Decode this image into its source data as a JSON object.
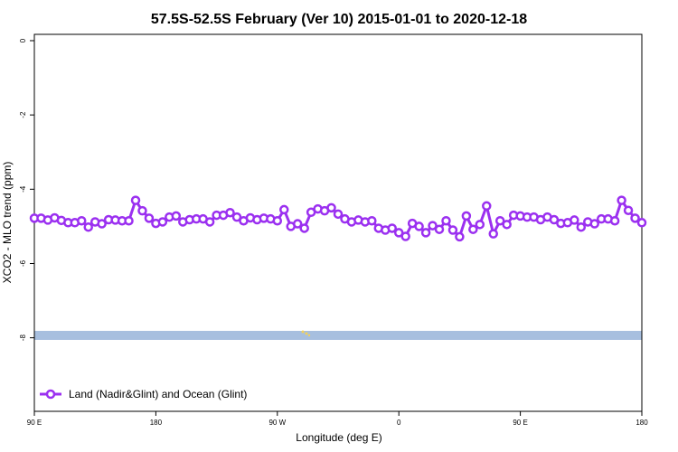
{
  "chart_data": {
    "type": "line",
    "title": "57.5S-52.5S February (Ver 10)   2015-01-01 to 2020-12-18",
    "xlabel": "Longitude (deg E)",
    "ylabel": "XCO2 - MLO trend (ppm)",
    "x": [
      90,
      95,
      100,
      105,
      110,
      115,
      120,
      125,
      130,
      135,
      140,
      145,
      150,
      155,
      160,
      165,
      170,
      175,
      180,
      185,
      190,
      195,
      200,
      205,
      210,
      215,
      220,
      225,
      230,
      235,
      240,
      245,
      250,
      255,
      260,
      265,
      270,
      275,
      280,
      285,
      290,
      295,
      300,
      305,
      310,
      315,
      320,
      325,
      330,
      335,
      340,
      345,
      350,
      355,
      360,
      365,
      370,
      375,
      380,
      385,
      390,
      395,
      400,
      405,
      410,
      415,
      420,
      425,
      430,
      435,
      440,
      445,
      450,
      455,
      460,
      465,
      470,
      475,
      480,
      485,
      490,
      495,
      500,
      505,
      510,
      515,
      520,
      525,
      530,
      535,
      540
    ],
    "series": [
      {
        "name": "Land (Nadir&Glint) and Ocean (Glint)",
        "color": "#9b30f0",
        "values": [
          -4.78,
          -4.78,
          -4.83,
          -4.77,
          -4.84,
          -4.9,
          -4.9,
          -4.85,
          -5.02,
          -4.88,
          -4.93,
          -4.82,
          -4.83,
          -4.85,
          -4.85,
          -4.3,
          -4.58,
          -4.78,
          -4.92,
          -4.88,
          -4.75,
          -4.72,
          -4.88,
          -4.82,
          -4.8,
          -4.8,
          -4.88,
          -4.7,
          -4.7,
          -4.63,
          -4.75,
          -4.85,
          -4.77,
          -4.82,
          -4.78,
          -4.8,
          -4.85,
          -4.55,
          -5.0,
          -4.93,
          -5.05,
          -4.62,
          -4.53,
          -4.58,
          -4.5,
          -4.67,
          -4.8,
          -4.88,
          -4.83,
          -4.88,
          -4.85,
          -5.05,
          -5.1,
          -5.05,
          -5.17,
          -5.27,
          -4.92,
          -5.0,
          -5.17,
          -4.98,
          -5.08,
          -4.85,
          -5.1,
          -5.28,
          -4.72,
          -5.08,
          -4.95,
          -4.45,
          -5.2,
          -4.85,
          -4.95,
          -4.7,
          -4.72,
          -4.75,
          -4.75,
          -4.82,
          -4.75,
          -4.82,
          -4.92,
          -4.9,
          -4.83,
          -5.02,
          -4.88,
          -4.93,
          -4.8,
          -4.8,
          -4.85,
          -4.3,
          -4.57,
          -4.78,
          -4.9
        ]
      }
    ],
    "xlim": [
      90,
      540
    ],
    "xticks": [
      {
        "value": 90,
        "label": "90 E"
      },
      180,
      {
        "value": 270,
        "label": "90 W"
      },
      {
        "value": 360,
        "label": "0"
      },
      {
        "value": 450,
        "label": "90 E"
      },
      {
        "value": 540,
        "label": "180"
      }
    ],
    "ylim": [
      -9.98,
      0.17
    ],
    "yticks": [
      0,
      -2,
      -4,
      -6,
      -8
    ],
    "legend": "bottom-left"
  }
}
